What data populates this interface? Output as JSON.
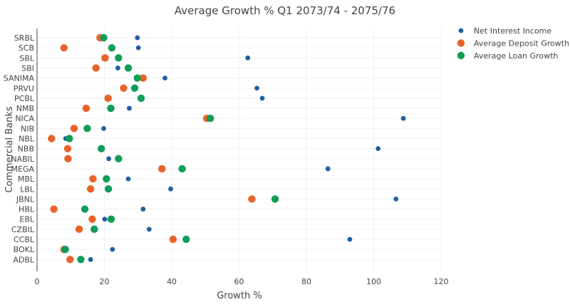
{
  "chart_data": {
    "type": "scatter",
    "title": "Average Growth % Q1 2073/74 - 2075/76",
    "xlabel": "Growth %",
    "ylabel": "Commercial Banks",
    "xlim": [
      0,
      120
    ],
    "xticks": [
      "0",
      "20",
      "40",
      "60",
      "80",
      "100",
      "120"
    ],
    "grid": true,
    "legend_position": "top-right",
    "categories": [
      "SRBL",
      "SCB",
      "SBL",
      "SBI",
      "SANIMA",
      "PRVU",
      "PCBL",
      "NMB",
      "NICA",
      "NIB",
      "NBL",
      "NBB",
      "NABIL",
      "MEGA",
      "MBL",
      "LBL",
      "JBNL",
      "HBL",
      "EBL",
      "CZBIL",
      "CCBL",
      "BOKL",
      "ADBL"
    ],
    "series": [
      {
        "name": "Net Interest Income",
        "color": "#1f5fa0",
        "values": [
          29.8,
          30.1,
          62.6,
          24,
          38,
          65.3,
          66.9,
          27.4,
          108.8,
          19.8,
          8.5,
          101.3,
          21.3,
          86.4,
          27.1,
          39.7,
          106.6,
          31.5,
          20.1,
          33.3,
          92.9,
          22.4,
          15.9
        ]
      },
      {
        "name": "Average Deposit Growth",
        "color": "#e8632a",
        "values": [
          18.7,
          8,
          20.2,
          17.5,
          31.5,
          25.7,
          21.1,
          14.6,
          50.4,
          11,
          4.3,
          9.1,
          9.2,
          37.1,
          16.6,
          15.9,
          63.8,
          5,
          16.4,
          12.5,
          40.4,
          8,
          9.8
        ]
      },
      {
        "name": "Average Loan Growth",
        "color": "#109d58",
        "values": [
          19.8,
          22.2,
          24.2,
          27.1,
          29.8,
          29,
          30.9,
          21.9,
          51.5,
          14.9,
          9.6,
          19.1,
          24.2,
          43.1,
          20.6,
          21.2,
          70.7,
          14.2,
          22,
          17,
          44.3,
          8.4,
          13
        ]
      }
    ]
  }
}
